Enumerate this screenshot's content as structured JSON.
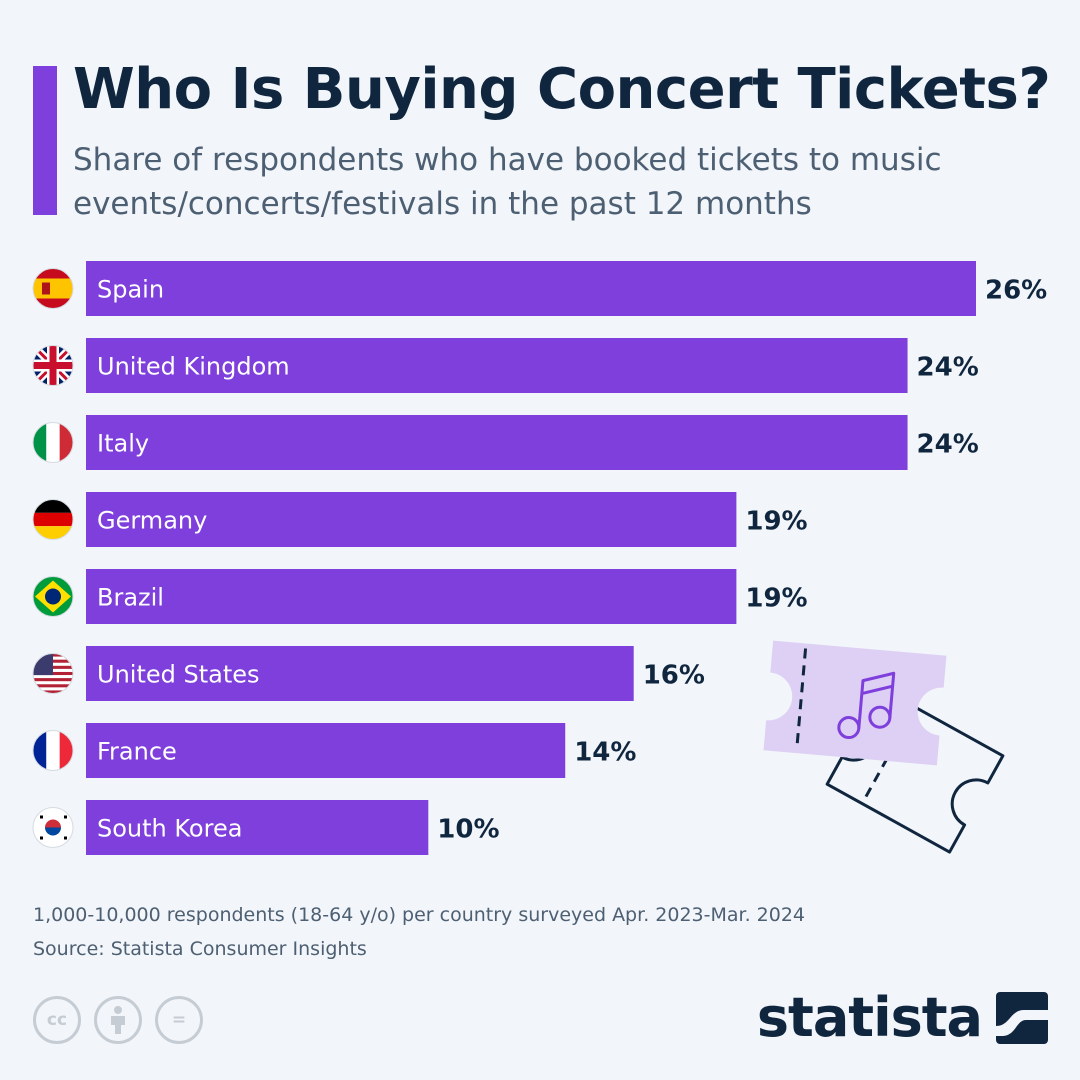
{
  "title": "Who Is Buying Concert Tickets?",
  "subtitle": "Share of respondents who have booked tickets to music events/concerts/festivals in the past 12 months",
  "colors": {
    "bar": "#7f3fdc",
    "accent": "#7f3fdc",
    "text": "#10263f",
    "ticket_fill": "#ddd0f4"
  },
  "chart_data": {
    "type": "bar",
    "orientation": "horizontal",
    "title": "Who Is Buying Concert Tickets?",
    "subtitle": "Share of respondents who have booked tickets to music events/concerts/festivals in the past 12 months",
    "categories": [
      "Spain",
      "United Kingdom",
      "Italy",
      "Germany",
      "Brazil",
      "United States",
      "France",
      "South Korea"
    ],
    "values": [
      26,
      24,
      24,
      19,
      19,
      16,
      14,
      10
    ],
    "value_labels": [
      "26%",
      "24%",
      "24%",
      "19%",
      "19%",
      "16%",
      "14%",
      "10%"
    ],
    "unit": "%",
    "xlim": [
      0,
      26
    ],
    "grid": false,
    "legend": "none"
  },
  "flags": [
    "spain-flag-icon",
    "uk-flag-icon",
    "italy-flag-icon",
    "germany-flag-icon",
    "brazil-flag-icon",
    "usa-flag-icon",
    "france-flag-icon",
    "south-korea-flag-icon"
  ],
  "decoration": {
    "icon": "concert-tickets-icon"
  },
  "footnote": {
    "note": "1,000-10,000 respondents (18-64 y/o) per country surveyed Apr. 2023-Mar. 2024",
    "source": "Source: Statista Consumer Insights"
  },
  "license_icons": [
    "creative-commons-icon",
    "attribution-icon",
    "no-derivatives-icon"
  ],
  "license_glyphs": [
    "cc",
    "",
    "="
  ],
  "brand": {
    "name": "statista",
    "icon": "statista-logo-icon"
  }
}
